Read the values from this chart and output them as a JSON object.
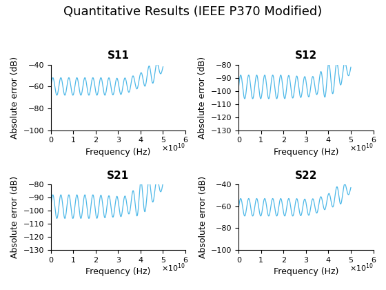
{
  "title": "Quantitative Results (IEEE P370 Modified)",
  "subplots": [
    {
      "title": "S11",
      "ylim": [
        -100,
        -40
      ],
      "yticks": [
        -100,
        -80,
        -60,
        -40
      ],
      "ylabel": "Absolute error (dB)"
    },
    {
      "title": "S12",
      "ylim": [
        -130,
        -80
      ],
      "yticks": [
        -130,
        -120,
        -110,
        -100,
        -90,
        -80
      ],
      "ylabel": "Absolute error (dB)"
    },
    {
      "title": "S21",
      "ylim": [
        -130,
        -80
      ],
      "yticks": [
        -130,
        -120,
        -110,
        -100,
        -90,
        -80
      ],
      "ylabel": "Absolute error (dB)"
    },
    {
      "title": "S22",
      "ylim": [
        -100,
        -40
      ],
      "yticks": [
        -100,
        -80,
        -60,
        -40
      ],
      "ylabel": "Absolute error (dB)"
    }
  ],
  "xlabel": "Frequency (Hz)",
  "xlim": [
    0,
    60000000000.0
  ],
  "freq_max": 50000000000.0,
  "line_color": "#4db8e8",
  "background_color": "#ffffff",
  "title_fontsize": 13,
  "subplot_title_fontsize": 11,
  "axis_label_fontsize": 9,
  "tick_fontsize": 8,
  "line_width": 0.9
}
